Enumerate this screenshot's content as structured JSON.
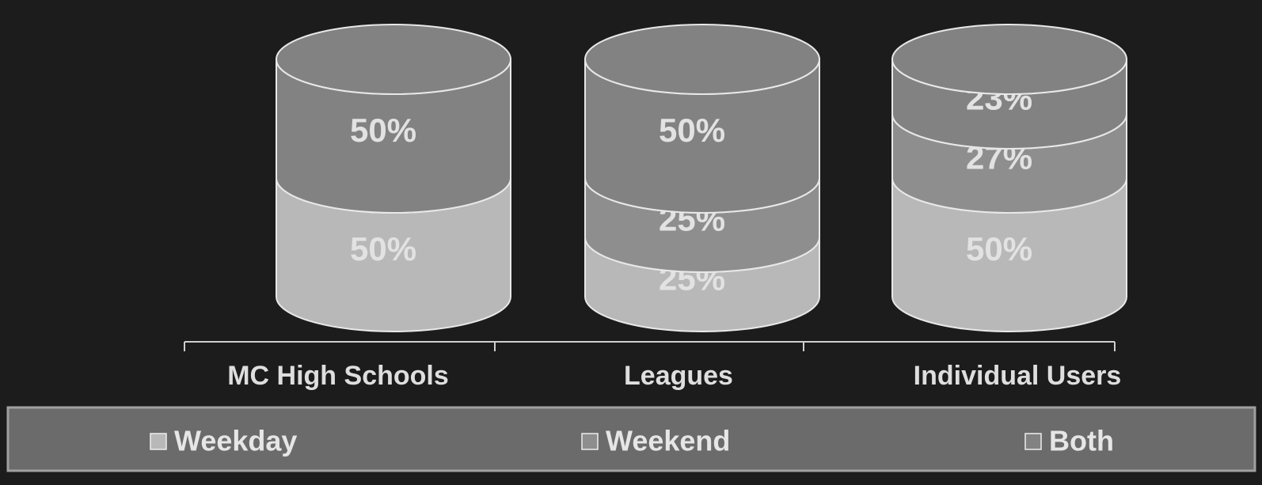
{
  "chart_data": {
    "type": "stacked-cylinder",
    "categories": [
      "MC High Schools",
      "Leagues",
      "Individual Users"
    ],
    "ylim": [
      0,
      100
    ],
    "legend": "bottom",
    "series": [
      {
        "name": "Weekday",
        "color": "#b8b8b8",
        "values": [
          50,
          25,
          50
        ],
        "value_labels": [
          "50%",
          "25%",
          "50%"
        ]
      },
      {
        "name": "Weekend",
        "color": "#8e8e8e",
        "values": [
          0,
          25,
          27
        ],
        "value_labels": [
          null,
          "25%",
          "27%"
        ]
      },
      {
        "name": "Both",
        "color": "#828282",
        "values": [
          50,
          50,
          23
        ],
        "value_labels": [
          "50%",
          "50%",
          "23%"
        ]
      }
    ]
  }
}
